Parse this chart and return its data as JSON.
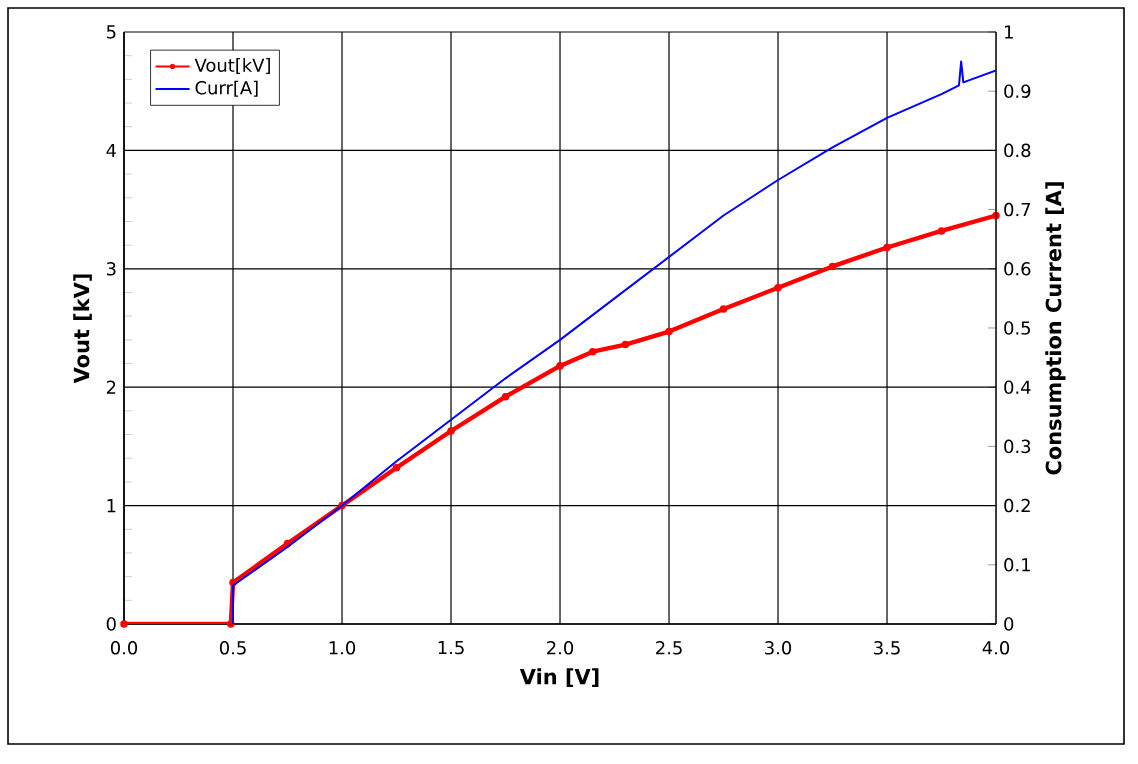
{
  "chart_data": {
    "type": "line",
    "xlabel": "Vin [V]",
    "ylabel": "Vout [kV]",
    "y2label": "Consumption Current [A]",
    "xlim": [
      0,
      4
    ],
    "ylim": [
      0,
      5
    ],
    "y2lim": [
      0,
      1
    ],
    "xticks": [
      {
        "value": 0,
        "label": "0.0"
      },
      {
        "value": 0.5,
        "label": "0.5"
      },
      {
        "value": 1,
        "label": "1.0"
      },
      {
        "value": 1.5,
        "label": "1.5"
      },
      {
        "value": 2,
        "label": "2.0"
      },
      {
        "value": 2.5,
        "label": "2.5"
      },
      {
        "value": 3,
        "label": "3.0"
      },
      {
        "value": 3.5,
        "label": "3.5"
      },
      {
        "value": 4,
        "label": "4.0"
      }
    ],
    "yticks": [
      0,
      1,
      2,
      3,
      4,
      5
    ],
    "y2ticks": [
      0,
      0.1,
      0.2,
      0.3,
      0.4,
      0.5,
      0.6,
      0.7,
      0.8,
      0.9,
      1
    ],
    "grid": true,
    "legend": "top left",
    "series": [
      {
        "name": "Vout[kV]",
        "color": "#ff0000",
        "marker": "circle",
        "x": [
          0,
          0.49,
          0.5,
          0.75,
          1.0,
          1.25,
          1.5,
          1.75,
          2.0,
          2.15,
          2.3,
          2.5,
          2.75,
          3.0,
          3.25,
          3.5,
          3.75,
          4.0
        ],
        "values": [
          0,
          0,
          0.35,
          0.68,
          1.0,
          1.32,
          1.63,
          1.92,
          2.18,
          2.3,
          2.36,
          2.47,
          2.66,
          2.84,
          3.02,
          3.18,
          3.32,
          3.45
        ]
      },
      {
        "name": "Curr[A]",
        "color": "#0000ff",
        "axis": "y2",
        "x": [
          0.5,
          0.5,
          0.75,
          1.0,
          1.25,
          1.5,
          1.75,
          2.0,
          2.25,
          2.5,
          2.75,
          3.0,
          3.25,
          3.5,
          3.75,
          3.83,
          3.84,
          3.85,
          4.0
        ],
        "values": [
          0,
          0.065,
          0.13,
          0.2,
          0.275,
          0.345,
          0.415,
          0.48,
          0.55,
          0.62,
          0.69,
          0.75,
          0.805,
          0.855,
          0.895,
          0.91,
          0.95,
          0.915,
          0.935
        ]
      }
    ]
  }
}
